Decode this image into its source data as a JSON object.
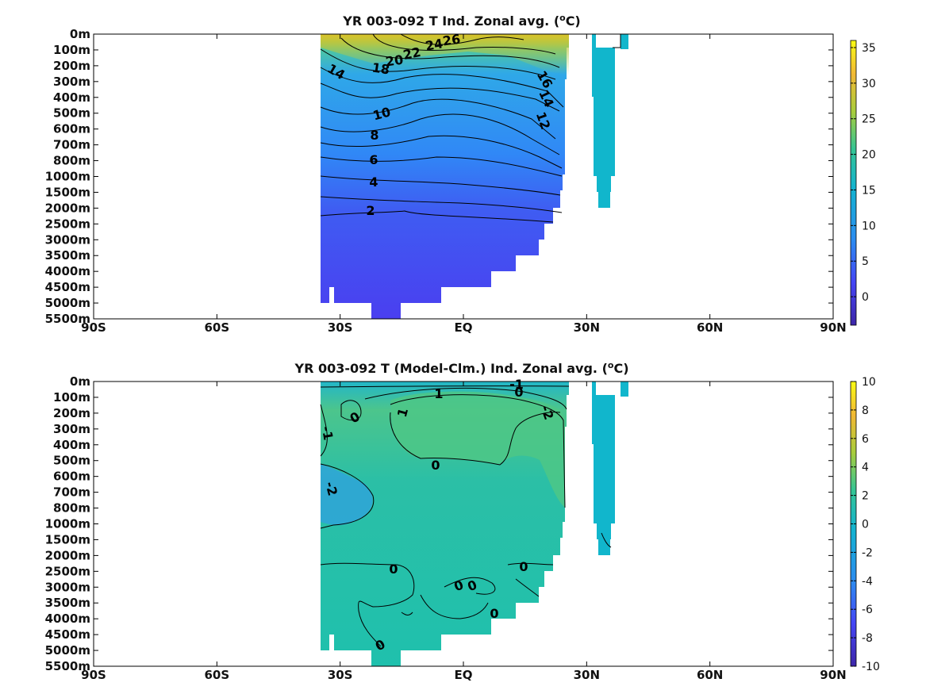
{
  "chart_data": [
    {
      "type": "heatmap",
      "title": "YR 003-092 T Ind. Zonal avg. (",
      "title_sup": "o",
      "title_end": "C)",
      "x_ticks": [
        "90S",
        "60S",
        "30S",
        "EQ",
        "30N",
        "60N",
        "90N"
      ],
      "y_ticks": [
        "0m",
        "100m",
        "200m",
        "300m",
        "400m",
        "500m",
        "600m",
        "700m",
        "800m",
        "1000m",
        "1500m",
        "2000m",
        "2500m",
        "3000m",
        "3500m",
        "4000m",
        "4500m",
        "5000m",
        "5500m"
      ],
      "colorbar": {
        "ticks": [
          "35",
          "30",
          "25",
          "20",
          "15",
          "10",
          "5",
          "0"
        ],
        "range": [
          -4,
          36
        ]
      },
      "contour_labels": [
        "26",
        "24",
        "22",
        "20",
        "18",
        "14",
        "16",
        "14",
        "12",
        "10",
        "8",
        "6",
        "4",
        "2"
      ],
      "colors": {
        "deep": "#4a3ff0",
        "mid": "#2f86f5",
        "warm": "#9fd34a",
        "hot": "#d8c02a",
        "band": "#11b6cc"
      }
    },
    {
      "type": "heatmap",
      "title": "YR 003-092 T (Model-Clm.) Ind. Zonal avg. (",
      "title_sup": "o",
      "title_end": "C)",
      "x_ticks": [
        "90S",
        "60S",
        "30S",
        "EQ",
        "30N",
        "60N",
        "90N"
      ],
      "y_ticks": [
        "0m",
        "100m",
        "200m",
        "300m",
        "400m",
        "500m",
        "600m",
        "700m",
        "800m",
        "1000m",
        "1500m",
        "2000m",
        "2500m",
        "3000m",
        "3500m",
        "4000m",
        "4500m",
        "5000m",
        "5500m"
      ],
      "colorbar": {
        "ticks": [
          "10",
          "8",
          "6",
          "4",
          "2",
          "0",
          "-2",
          "-4",
          "-6",
          "-8",
          "-10"
        ],
        "range": [
          -10,
          10
        ]
      },
      "contour_labels": [
        "-1",
        "0",
        "1",
        "1",
        "0",
        "-1",
        "-2",
        "0",
        "-2",
        "0",
        "0",
        "0",
        "0",
        "0",
        "0",
        "0"
      ],
      "colors": {
        "base": "#1fbfb0",
        "pos": "#55c87a",
        "neg": "#2aa6d6",
        "band": "#11b6cc"
      }
    }
  ]
}
